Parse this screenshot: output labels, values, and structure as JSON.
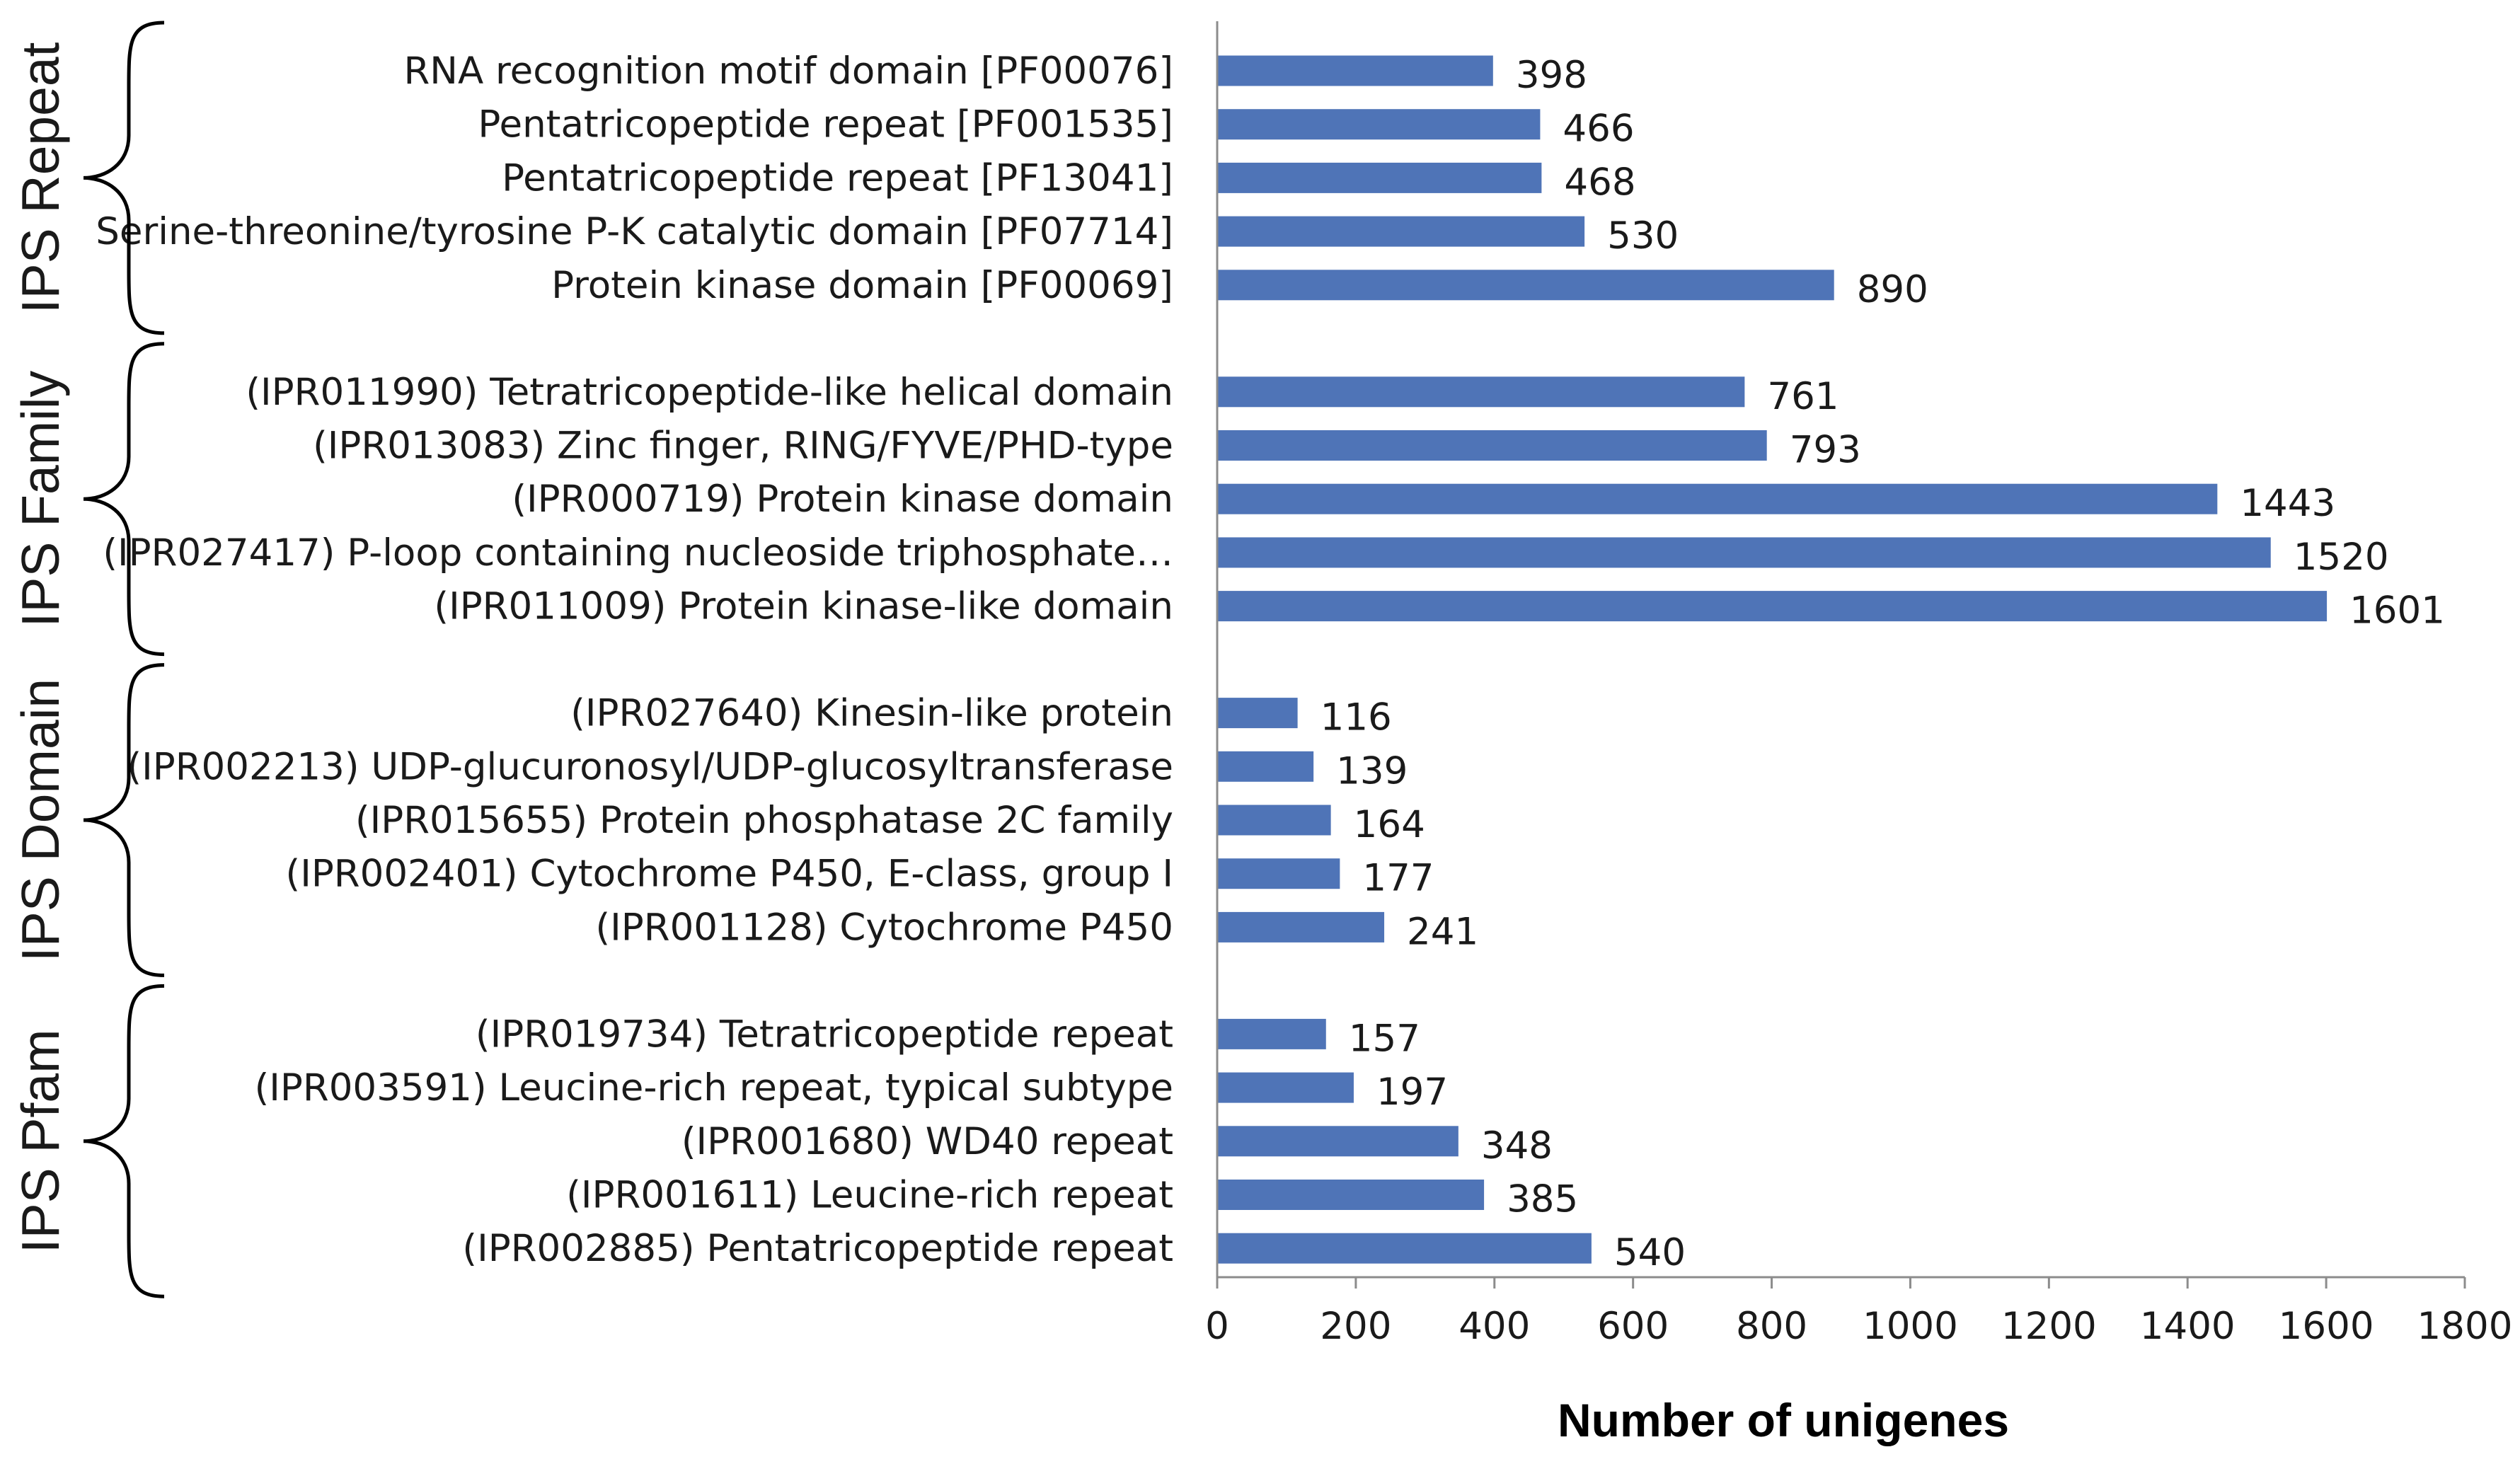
{
  "chart_data": {
    "type": "bar",
    "orientation": "horizontal",
    "xlabel": "Number of unigenes",
    "xlim": [
      0,
      1800
    ],
    "xticks": [
      0,
      200,
      400,
      600,
      800,
      1000,
      1200,
      1400,
      1600,
      1800
    ],
    "bar_color": "#4f74b7",
    "groups": [
      {
        "name": "IPS Repeat",
        "items": [
          {
            "label": "RNA recognition motif domain [PF00076]",
            "value": 398
          },
          {
            "label": "Pentatricopeptide repeat [PF001535]",
            "value": 466
          },
          {
            "label": "Pentatricopeptide repeat [PF13041]",
            "value": 468
          },
          {
            "label": "Serine-threonine/tyrosine P-K catalytic domain [PF07714]",
            "value": 530
          },
          {
            "label": "Protein kinase domain [PF00069]",
            "value": 890
          }
        ]
      },
      {
        "name": "IPS Family",
        "items": [
          {
            "label": "(IPR011990) Tetratricopeptide-like helical domain",
            "value": 761
          },
          {
            "label": "(IPR013083) Zinc finger, RING/FYVE/PHD-type",
            "value": 793
          },
          {
            "label": "(IPR000719) Protein kinase domain",
            "value": 1443
          },
          {
            "label": "(IPR027417) P-loop containing nucleoside triphosphate…",
            "value": 1520
          },
          {
            "label": "(IPR011009) Protein kinase-like domain",
            "value": 1601
          }
        ]
      },
      {
        "name": "IPS Domain",
        "items": [
          {
            "label": "(IPR027640) Kinesin-like protein",
            "value": 116
          },
          {
            "label": "(IPR002213) UDP-glucuronosyl/UDP-glucosyltransferase",
            "value": 139
          },
          {
            "label": "(IPR015655) Protein phosphatase 2C family",
            "value": 164
          },
          {
            "label": "(IPR002401) Cytochrome P450, E-class, group I",
            "value": 177
          },
          {
            "label": "(IPR001128) Cytochrome P450",
            "value": 241
          }
        ]
      },
      {
        "name": "IPS Pfam",
        "items": [
          {
            "label": "(IPR019734) Tetratricopeptide repeat",
            "value": 157
          },
          {
            "label": "(IPR003591) Leucine-rich repeat, typical subtype",
            "value": 197
          },
          {
            "label": "(IPR001680) WD40 repeat",
            "value": 348
          },
          {
            "label": "(IPR001611) Leucine-rich repeat",
            "value": 385
          },
          {
            "label": "(IPR002885) Pentatricopeptide repeat",
            "value": 540
          }
        ]
      }
    ]
  }
}
